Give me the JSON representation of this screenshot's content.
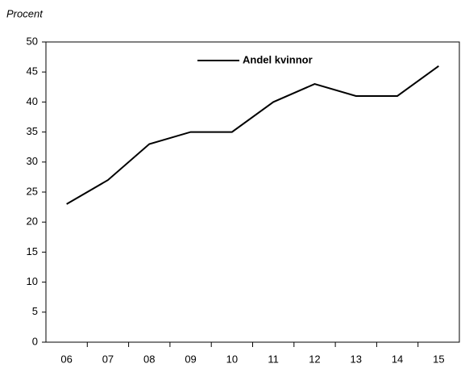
{
  "chart_data": {
    "type": "line",
    "y_label": "Procent",
    "categories": [
      "06",
      "07",
      "08",
      "09",
      "10",
      "11",
      "12",
      "13",
      "14",
      "15"
    ],
    "series": [
      {
        "name": "Andel kvinnor",
        "color": "#000000",
        "values": [
          23,
          27,
          33,
          35,
          35,
          40,
          43,
          41,
          41,
          46
        ]
      }
    ],
    "ylim": [
      0,
      50
    ],
    "yticks": [
      0,
      5,
      10,
      15,
      20,
      25,
      30,
      35,
      40,
      45,
      50
    ],
    "grid": false
  }
}
